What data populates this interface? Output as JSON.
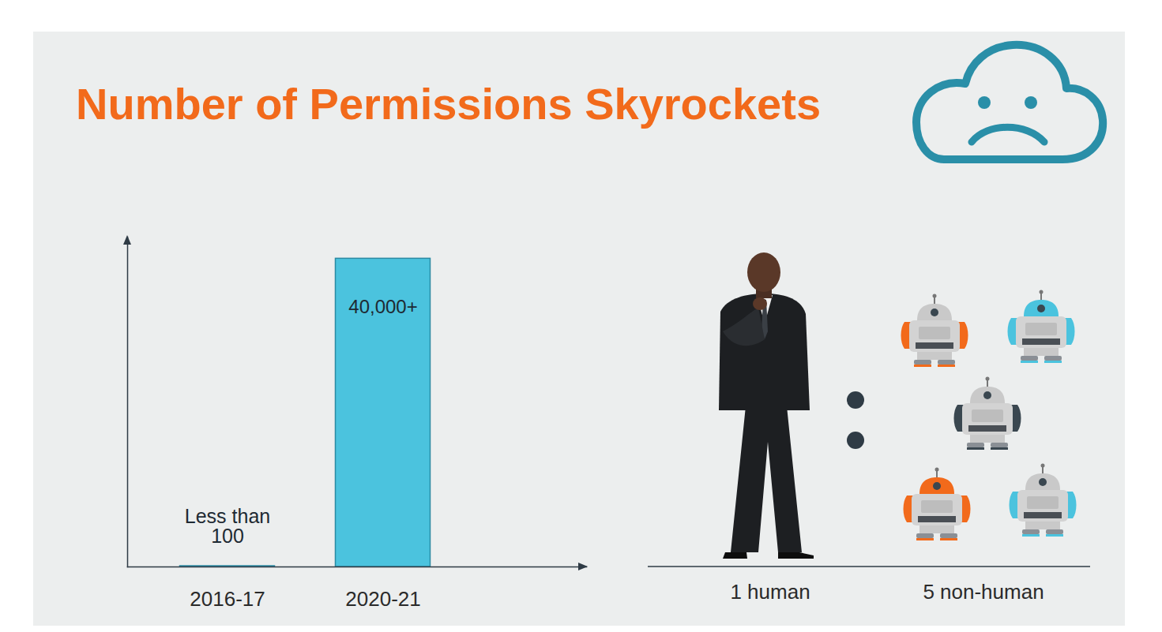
{
  "chart_data": {
    "type": "bar",
    "title": "Number of Permissions Skyrockets",
    "categories": [
      "2016-17",
      "2020-21"
    ],
    "values": [
      100,
      40000
    ],
    "value_labels": [
      "Less than 100",
      "40,000+"
    ],
    "data_labels": true,
    "color": "#4bc3de",
    "ylim": [
      0,
      42800
    ],
    "yticks": [],
    "tick_labels": "x",
    "grid": false
  },
  "illustration": {
    "labels": [
      "1 human",
      "5 non-human"
    ],
    "counts": [
      1,
      5
    ]
  }
}
